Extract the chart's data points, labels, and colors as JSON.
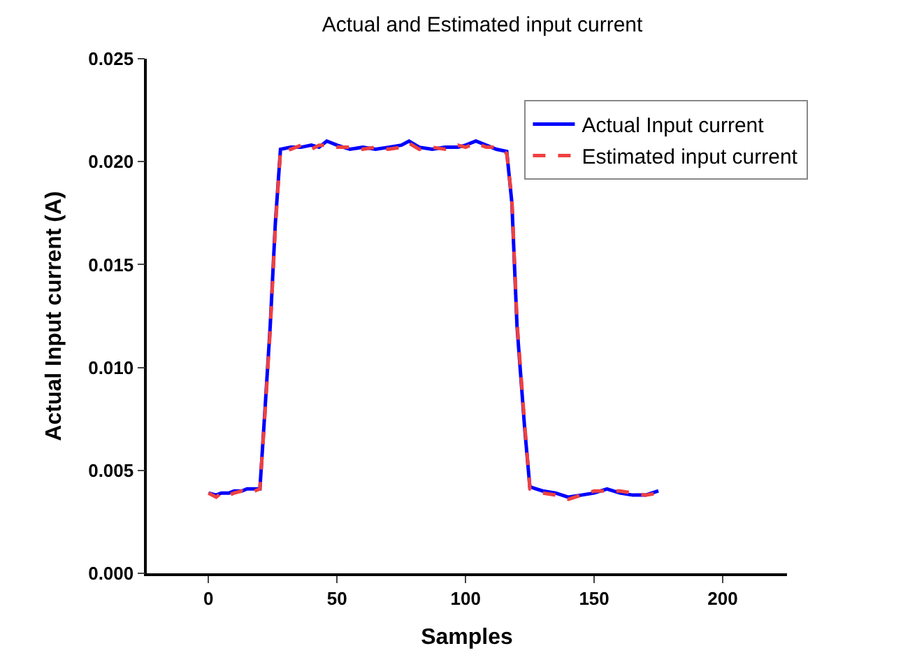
{
  "chart_data": {
    "type": "line",
    "title": "Actual and Estimated input current",
    "xlabel": "Samples",
    "ylabel": "Actual Input current (A)",
    "xlim": [
      -24,
      225
    ],
    "xticks": [
      0,
      50,
      100,
      150,
      200
    ],
    "ylim": [
      0,
      0.025
    ],
    "yticks": [
      {
        "value": 0,
        "label": "0.000"
      },
      {
        "value": 0.005,
        "label": "0.005"
      },
      {
        "value": 0.01,
        "label": "0.010"
      },
      {
        "value": 0.015,
        "label": "0.015"
      },
      {
        "value": 0.02,
        "label": "0.020"
      },
      {
        "value": 0.025,
        "label": "0.025"
      }
    ],
    "legend": "top right",
    "series": [
      {
        "name": "Actual Input current",
        "color": "#0000ff",
        "line_style": "solid",
        "x": [
          0,
          3,
          5,
          8,
          10,
          13,
          15,
          18,
          20,
          22,
          24,
          26,
          28,
          32,
          36,
          40,
          43,
          46,
          50,
          55,
          60,
          65,
          70,
          75,
          78,
          82,
          87,
          92,
          97,
          100,
          104,
          108,
          112,
          116,
          118,
          120,
          123,
          125,
          130,
          135,
          140,
          145,
          150,
          155,
          160,
          165,
          170,
          175
        ],
        "values": [
          0.0039,
          0.0038,
          0.0039,
          0.0039,
          0.004,
          0.004,
          0.0041,
          0.0041,
          0.0041,
          0.008,
          0.012,
          0.017,
          0.0206,
          0.0207,
          0.0207,
          0.0208,
          0.0207,
          0.021,
          0.0208,
          0.0206,
          0.0207,
          0.0206,
          0.0207,
          0.0208,
          0.021,
          0.0207,
          0.0206,
          0.0207,
          0.0207,
          0.0208,
          0.021,
          0.0208,
          0.0206,
          0.0205,
          0.018,
          0.012,
          0.007,
          0.0042,
          0.004,
          0.0039,
          0.0037,
          0.0038,
          0.0039,
          0.0041,
          0.0039,
          0.0038,
          0.0038,
          0.004
        ]
      },
      {
        "name": "Estimated input current",
        "color": "#f04040",
        "line_style": "dashed",
        "x": [
          0,
          3,
          5,
          8,
          10,
          13,
          15,
          18,
          20,
          22,
          24,
          26,
          28,
          32,
          36,
          40,
          43,
          46,
          50,
          55,
          60,
          65,
          70,
          75,
          78,
          82,
          87,
          92,
          97,
          100,
          104,
          108,
          112,
          116,
          118,
          120,
          123,
          125,
          130,
          135,
          140,
          145,
          150,
          155,
          160,
          165,
          170,
          175
        ],
        "values": [
          0.0039,
          0.0037,
          0.0039,
          0.0038,
          0.0039,
          0.004,
          0.0039,
          0.004,
          0.0041,
          0.0078,
          0.0118,
          0.0168,
          0.0205,
          0.0206,
          0.0208,
          0.0206,
          0.0208,
          0.0208,
          0.0207,
          0.0207,
          0.0206,
          0.0207,
          0.0206,
          0.0207,
          0.0209,
          0.0206,
          0.0207,
          0.0206,
          0.0208,
          0.0207,
          0.0209,
          0.0207,
          0.0207,
          0.0204,
          0.0182,
          0.0122,
          0.0072,
          0.0041,
          0.0039,
          0.0038,
          0.0036,
          0.0038,
          0.004,
          0.004,
          0.004,
          0.0039,
          0.0038,
          0.0039
        ]
      }
    ]
  }
}
